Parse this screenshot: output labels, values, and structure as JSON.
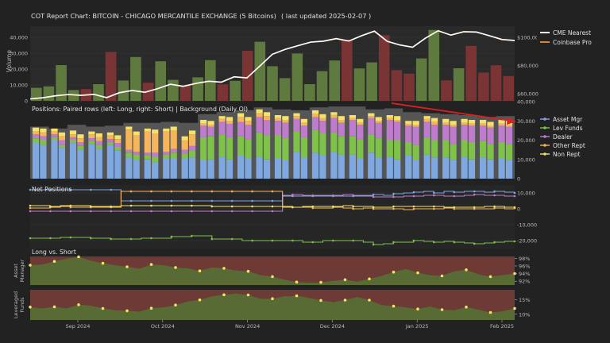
{
  "header": {
    "title": "COT Report Chart:  BITCOIN - CHICAGO MERCANTILE EXCHANGE   (5 Bitcoins)",
    "updated": "( last updated 2025-02-07 )"
  },
  "colors": {
    "background": "#222222",
    "cme": "#ffffff",
    "coinbase": "#d9843a",
    "asset_mgr": "#7fa7e0",
    "lev_funds": "#7fc24a",
    "dealer": "#c07ccc",
    "other_rept": "#f5b55a",
    "non_rept": "#f3e26b",
    "oi_bg": "#555555",
    "vol_up": "#5f7a3e",
    "vol_down": "#7a3434",
    "long_fill": "#586b34",
    "short_fill": "#6d3a36",
    "trend_arrow": "#e01f1f"
  },
  "chart_data": [
    {
      "id": "price_volume",
      "type": "line",
      "ylabel": "Volume",
      "volume_ticks": [
        "0",
        "10,000",
        "20,000",
        "30,000",
        "40,000"
      ],
      "price_ticks": [
        "$60,000",
        "$80,000",
        "$100,000"
      ],
      "series": [
        {
          "name": "CME Nearest",
          "values": [
            56400,
            57200,
            58600,
            59500,
            58900,
            59600,
            57300,
            60800,
            62400,
            61100,
            63700,
            66800,
            65300,
            67400,
            68900,
            68300,
            72100,
            71300,
            79600,
            88100,
            91600,
            94200,
            96700,
            97400,
            99200,
            97500,
            101300,
            104500,
            97300,
            94700,
            93100,
            99500,
            104800,
            101700,
            104100,
            103900,
            101300,
            98600,
            97900
          ]
        },
        {
          "name": "Coinbase Pro",
          "values": [
            56200,
            57000,
            58400,
            59300,
            58700,
            59400,
            57100,
            60600,
            62200,
            60900,
            63500,
            66600,
            65100,
            67200,
            68700,
            68100,
            71900,
            71100,
            79400,
            87900,
            91400,
            94000,
            96500,
            97200,
            99000,
            97300,
            101100,
            104300,
            97100,
            94500,
            92900,
            99300,
            104600,
            101500,
            103900,
            103700,
            101100,
            98400,
            97700
          ]
        }
      ],
      "volume": [
        8200,
        9100,
        22500,
        6800,
        7400,
        10500,
        30800,
        12800,
        27600,
        11400,
        24900,
        13200,
        9700,
        14800,
        25600,
        10400,
        12600,
        31500,
        37200,
        21800,
        14300,
        29800,
        10500,
        18700,
        25400,
        38500,
        20400,
        24200,
        41300,
        19300,
        17100,
        26700,
        44600,
        12900,
        20500,
        34600,
        17800,
        22400,
        15600
      ]
    },
    {
      "id": "positions",
      "type": "bar",
      "title": "Positions: Paired rows (left: Long, right: Short) | Background (Daily OI)",
      "y_ticks": [
        "0",
        "10,000",
        "20,000",
        "30,000",
        "40,000"
      ],
      "ylim": [
        0,
        40000
      ],
      "series": [
        {
          "name": "Asset Mgr",
          "long": [
            19000,
            20000,
            18500,
            18000,
            17500,
            11000,
            10000,
            10500,
            10500,
            9500,
            11500,
            12000,
            11500,
            10500,
            14000,
            13500,
            14000,
            12500,
            13500,
            11500,
            12000,
            12500,
            11000,
            11500,
            11000,
            10500
          ],
          "short": [
            17500,
            16000,
            15000,
            15500,
            14500,
            9500,
            8500,
            10500,
            11000,
            10000,
            10000,
            10500,
            10000,
            9500,
            11000,
            12000,
            12500,
            10500,
            11000,
            10000,
            9500,
            11000,
            9500,
            10000,
            10000,
            9500
          ]
        },
        {
          "name": "Lev Funds",
          "long": [
            2000,
            1500,
            1500,
            1500,
            1500,
            2500,
            2000,
            2000,
            2500,
            12000,
            11500,
            10000,
            12500,
            12000,
            10500,
            12000,
            10000,
            9500,
            9500,
            8500,
            7000,
            9000,
            9000,
            8500,
            8500,
            8500
          ],
          "short": [
            2500,
            1500,
            2000,
            2000,
            2000,
            3000,
            3000,
            3000,
            3500,
            12000,
            11500,
            10000,
            12500,
            11500,
            10500,
            11500,
            9500,
            10000,
            10000,
            10000,
            8000,
            9000,
            8500,
            9000,
            8000,
            8500
          ]
        },
        {
          "name": "Dealer",
          "long": [
            2000,
            1500,
            1500,
            1500,
            1500,
            1500,
            1500,
            1500,
            2000,
            6000,
            6500,
            7500,
            8000,
            7500,
            6500,
            6500,
            7500,
            8500,
            8500,
            10500,
            8500,
            8000,
            8000,
            8000,
            8000,
            8500
          ],
          "short": [
            2000,
            2500,
            2000,
            2000,
            2000,
            1500,
            2000,
            2000,
            2500,
            5000,
            7000,
            7500,
            8000,
            8000,
            6000,
            6500,
            7000,
            7500,
            8000,
            9500,
            9500,
            8000,
            9000,
            8500,
            8500,
            9000
          ]
        },
        {
          "name": "Other Rept",
          "long": [
            1500,
            1500,
            1500,
            2000,
            2000,
            10500,
            11000,
            10500,
            5000,
            1000,
            1500,
            2500,
            2000,
            1500,
            1500,
            1500,
            1500,
            1000,
            1000,
            1000,
            1000,
            1500,
            1000,
            1000,
            1000,
            1000
          ],
          "short": [
            2000,
            2000,
            2000,
            2000,
            2000,
            8500,
            10000,
            9500,
            6000,
            1000,
            1500,
            2000,
            2000,
            1500,
            1500,
            1500,
            1500,
            1000,
            1000,
            1000,
            1000,
            1500,
            1000,
            1000,
            1000,
            1000
          ]
        },
        {
          "name": "Non Rept",
          "long": [
            2000,
            1500,
            2000,
            1500,
            1500,
            1500,
            1500,
            1500,
            2000,
            2000,
            1500,
            2000,
            2000,
            1500,
            1500,
            2000,
            1500,
            1500,
            1500,
            1500,
            1500,
            1500,
            2000,
            2000,
            2000,
            2000
          ],
          "short": [
            2000,
            2000,
            2000,
            2000,
            2000,
            2000,
            2000,
            2000,
            2000,
            2000,
            2000,
            2000,
            2000,
            2000,
            2000,
            2000,
            2000,
            2000,
            2000,
            2000,
            2000,
            2000,
            2000,
            2000,
            2000,
            2000
          ]
        }
      ],
      "open_interest": [
        27000,
        26000,
        28000,
        27000,
        27500,
        29000,
        29000,
        29500,
        29000,
        33500,
        34500,
        35500,
        37000,
        36000,
        35500,
        37000,
        37500,
        37500,
        36000,
        36500,
        34500,
        34000,
        33500,
        33000,
        32000,
        32500
      ]
    },
    {
      "id": "net_positions",
      "type": "line",
      "title": "Net Positions",
      "y_ticks": [
        "-20,000",
        "-10,000",
        "0",
        "10,000"
      ],
      "ylim": [
        -25000,
        15000
      ],
      "series": [
        {
          "name": "Asset Mgr",
          "values": [
            12000,
            12000,
            12000,
            12000,
            12000,
            12000,
            12000,
            12000,
            12000,
            5000,
            5000,
            5000,
            5000,
            5000,
            5000,
            5000,
            5000,
            5000,
            5000,
            5000,
            5000,
            5000,
            5000,
            5000,
            5000,
            8000,
            8000,
            8000,
            8000,
            8000,
            8000,
            8000,
            8000,
            8000,
            9000,
            8500,
            9500,
            10000,
            10500,
            11000,
            10000,
            11000,
            10500,
            11000,
            11000,
            10500,
            11000,
            10500,
            10000
          ]
        },
        {
          "name": "Lev Funds",
          "values": [
            -18500,
            -18500,
            -18500,
            -18000,
            -18000,
            -18000,
            -18500,
            -18500,
            -19000,
            -19000,
            -19000,
            -18500,
            -18500,
            -18500,
            -17500,
            -17500,
            -17000,
            -17000,
            -19000,
            -19000,
            -19000,
            -20000,
            -20000,
            -20000,
            -20000,
            -20000,
            -20000,
            -21000,
            -21000,
            -20000,
            -20000,
            -20000,
            -20000,
            -21000,
            -22500,
            -22000,
            -21000,
            -21000,
            -20000,
            -20500,
            -21000,
            -20500,
            -21000,
            -21500,
            -22000,
            -21500,
            -21000,
            -20500,
            -20500
          ]
        },
        {
          "name": "Dealer",
          "values": [
            -1500,
            -1500,
            -1500,
            -1500,
            -1500,
            -1500,
            -1500,
            -1500,
            -1500,
            -1500,
            -1500,
            -1500,
            -1500,
            -1500,
            -1500,
            -1500,
            -1500,
            -1500,
            -1500,
            -1500,
            -1500,
            -1500,
            -1500,
            -1500,
            -1500,
            8500,
            9000,
            8500,
            8500,
            8500,
            8500,
            9000,
            8500,
            8500,
            7500,
            7500,
            7500,
            8000,
            8000,
            8500,
            8500,
            8000,
            8000,
            8500,
            9000,
            8500,
            8500,
            8000,
            8000
          ]
        },
        {
          "name": "Other Rept",
          "values": [
            500,
            500,
            1000,
            1500,
            1000,
            1000,
            1000,
            1000,
            1000,
            11000,
            11000,
            11000,
            11000,
            11000,
            11000,
            11000,
            11000,
            11000,
            11000,
            11000,
            11000,
            11000,
            11000,
            11000,
            11000,
            1000,
            1000,
            1000,
            500,
            500,
            1000,
            500,
            0,
            500,
            0,
            0,
            0,
            -500,
            0,
            0,
            0,
            500,
            0,
            0,
            0,
            0,
            500,
            0,
            500
          ]
        },
        {
          "name": "Non Rept",
          "values": [
            2000,
            2000,
            1500,
            2000,
            2000,
            2000,
            1500,
            1500,
            1500,
            2000,
            2000,
            2000,
            2000,
            2000,
            2000,
            2000,
            2000,
            2000,
            1500,
            1500,
            1500,
            1500,
            1500,
            1500,
            1500,
            1500,
            1000,
            1500,
            1500,
            1500,
            1500,
            2000,
            1500,
            1500,
            1000,
            1000,
            1500,
            1500,
            1500,
            1500,
            1500,
            1000,
            1000,
            1000,
            1000,
            1500,
            1500,
            1000,
            1000
          ]
        }
      ]
    },
    {
      "id": "long_vs_short",
      "type": "area",
      "title": "Long vs. Short",
      "panels": [
        {
          "ylabel": "Asset Manager",
          "y_ticks": [
            "92%",
            "94%",
            "96%",
            "98%"
          ],
          "ylim": [
            91,
            98.5
          ],
          "values": [
            96.2,
            96.4,
            97.2,
            97.9,
            98.4,
            97.4,
            96.7,
            96.2,
            95.8,
            95.3,
            96.4,
            96.2,
            95.6,
            95.4,
            94.7,
            95.6,
            95.4,
            94.8,
            94.6,
            93.6,
            93.2,
            92.4,
            91.8,
            91.6,
            91.7,
            92.1,
            92.4,
            91.9,
            92.6,
            93.4,
            94.4,
            95.2,
            94.2,
            93.6,
            93.4,
            94.6,
            95.0,
            93.8,
            93.2,
            93.6,
            94.0
          ]
        },
        {
          "ylabel": "Leveraged Funds",
          "y_ticks": [
            "10%",
            "15%"
          ],
          "ylim": [
            8,
            18.5
          ],
          "values": [
            12.5,
            12.0,
            12.6,
            12.0,
            13.3,
            13.0,
            12.0,
            11.4,
            11.2,
            10.9,
            12.1,
            12.4,
            13.2,
            14.4,
            15.0,
            16.2,
            16.8,
            17.2,
            16.7,
            15.4,
            15.4,
            16.2,
            16.4,
            15.7,
            14.8,
            14.2,
            14.9,
            16.0,
            14.9,
            13.2,
            12.8,
            12.4,
            11.8,
            12.7,
            11.6,
            11.4,
            12.5,
            11.6,
            10.6,
            11.0,
            12.0
          ]
        }
      ]
    }
  ],
  "x_axis": {
    "ticks": [
      "Sep 2024",
      "Oct 2024",
      "Nov 2024",
      "Dec 2024",
      "Jan 2025",
      "Feb 2025"
    ]
  }
}
